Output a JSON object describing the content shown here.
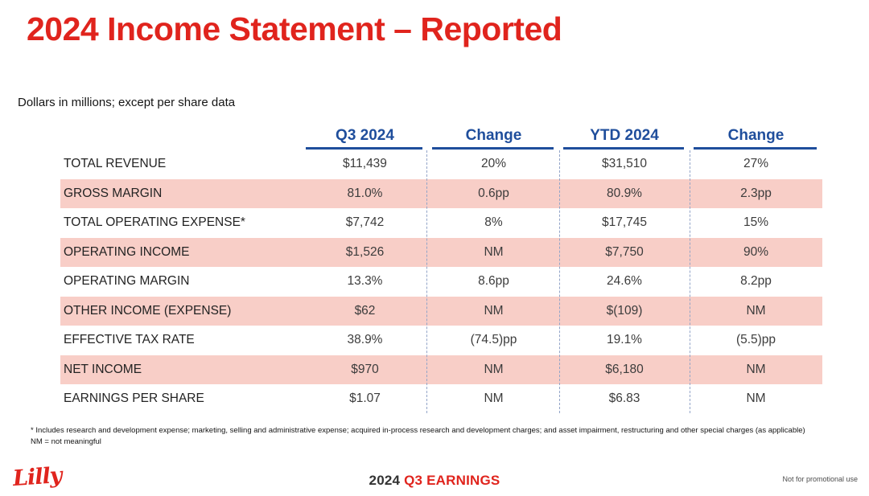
{
  "slide": {
    "title": "2024 Income Statement – Reported",
    "subtitle": "Dollars in millions; except per share data"
  },
  "table": {
    "columns": [
      "Q3 2024",
      "Change",
      "YTD 2024",
      "Change"
    ],
    "rows": [
      {
        "label": "TOTAL REVENUE",
        "q3_2024": "$11,439",
        "q3_change": "20%",
        "ytd_2024": "$31,510",
        "ytd_change": "27%",
        "shaded": false
      },
      {
        "label": "GROSS MARGIN",
        "q3_2024": "81.0%",
        "q3_change": "0.6pp",
        "ytd_2024": "80.9%",
        "ytd_change": "2.3pp",
        "shaded": true
      },
      {
        "label": "TOTAL OPERATING EXPENSE*",
        "q3_2024": "$7,742",
        "q3_change": "8%",
        "ytd_2024": "$17,745",
        "ytd_change": "15%",
        "shaded": false
      },
      {
        "label": "OPERATING INCOME",
        "q3_2024": "$1,526",
        "q3_change": "NM",
        "ytd_2024": "$7,750",
        "ytd_change": "90%",
        "shaded": true
      },
      {
        "label": "OPERATING MARGIN",
        "q3_2024": "13.3%",
        "q3_change": "8.6pp",
        "ytd_2024": "24.6%",
        "ytd_change": "8.2pp",
        "shaded": false
      },
      {
        "label": "OTHER INCOME (EXPENSE)",
        "q3_2024": "$62",
        "q3_change": "NM",
        "ytd_2024": "$(109)",
        "ytd_change": "NM",
        "shaded": true
      },
      {
        "label": "EFFECTIVE TAX RATE",
        "q3_2024": "38.9%",
        "q3_change": "(74.5)pp",
        "ytd_2024": "19.1%",
        "ytd_change": "(5.5)pp",
        "shaded": false
      },
      {
        "label": "NET INCOME",
        "q3_2024": "$970",
        "q3_change": "NM",
        "ytd_2024": "$6,180",
        "ytd_change": "NM",
        "shaded": true
      },
      {
        "label": "EARNINGS PER SHARE",
        "q3_2024": "$1.07",
        "q3_change": "NM",
        "ytd_2024": "$6.83",
        "ytd_change": "NM",
        "shaded": false
      }
    ]
  },
  "footnotes": {
    "line1": "* Includes research and development expense; marketing, selling and administrative expense; acquired in-process research and development charges; and asset impairment, restructuring and other special charges (as applicable)",
    "line2": "NM = not meaningful"
  },
  "footer": {
    "logo": "Lilly",
    "year": "2024",
    "event": "Q3 EARNINGS",
    "disclaimer": "Not for promotional use"
  },
  "colors": {
    "accent_red": "#e0241d",
    "header_blue": "#1f4e9c",
    "row_pink": "#f8cec7",
    "dashed_separator": "#92a4c8"
  }
}
